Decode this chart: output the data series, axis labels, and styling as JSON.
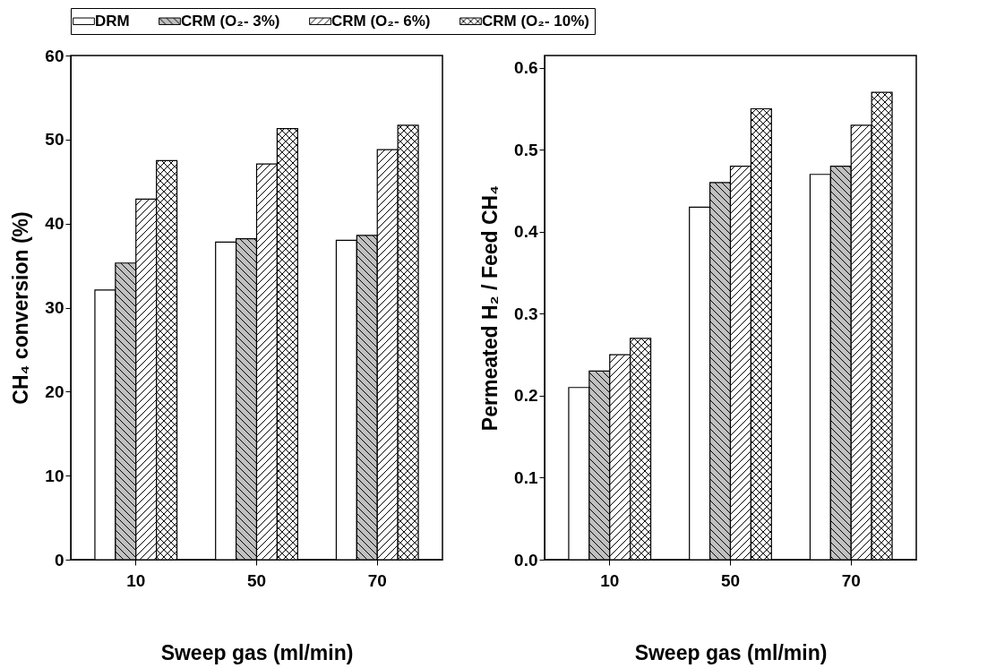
{
  "chart_data": [
    {
      "type": "bar",
      "categories": [
        "10",
        "50",
        "70"
      ],
      "xlabel": "Sweep gas (ml/min)",
      "ylabel": "CH₄ conversion (%)",
      "ylim": [
        0,
        60
      ],
      "yticks": [
        0,
        10,
        20,
        30,
        40,
        50,
        60
      ],
      "legend": "top",
      "series": [
        {
          "name": "DRM",
          "color": "#ffffff",
          "values": [
            32.1,
            37.8,
            38.0
          ]
        },
        {
          "name": "CRM (O₂- 3%)",
          "color": "#c0c0c0",
          "values": [
            35.3,
            38.2,
            38.6
          ]
        },
        {
          "name": "CRM (O₂- 6%)",
          "color": "#ffffff",
          "values": [
            42.9,
            47.1,
            48.8
          ]
        },
        {
          "name": "CRM (O₂- 10%)",
          "color": "#ffffff",
          "values": [
            47.5,
            51.3,
            51.7
          ]
        }
      ]
    },
    {
      "type": "bar",
      "categories": [
        "10",
        "50",
        "70"
      ],
      "xlabel": "Sweep gas (ml/min)",
      "ylabel": "Permeated H₂ / Feed CH₄",
      "ylim": [
        0,
        0.615
      ],
      "yticks": [
        {
          "value": 0,
          "label": "0.0"
        },
        0.1,
        0.2,
        0.3,
        0.4,
        0.5,
        0.6
      ],
      "legend": "top",
      "series": [
        {
          "name": "DRM",
          "color": "#ffffff",
          "values": [
            0.21,
            0.43,
            0.47
          ]
        },
        {
          "name": "CRM (O₂- 3%)",
          "color": "#c0c0c0",
          "values": [
            0.23,
            0.46,
            0.48
          ]
        },
        {
          "name": "CRM (O₂- 6%)",
          "color": "#ffffff",
          "values": [
            0.25,
            0.48,
            0.53
          ]
        },
        {
          "name": "CRM (O₂- 10%)",
          "color": "#ffffff",
          "values": [
            0.27,
            0.55,
            0.57
          ]
        }
      ]
    }
  ]
}
